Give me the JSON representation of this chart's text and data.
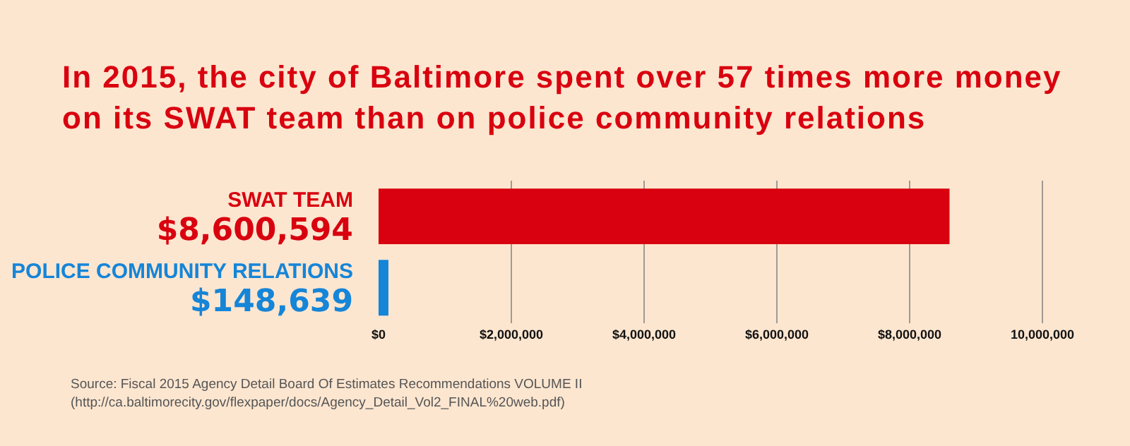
{
  "chart_data": {
    "type": "bar",
    "orientation": "horizontal",
    "title": "In 2015, the city of Baltimore spent over 57 times more money on its SWAT team than on police community relations",
    "categories": [
      "SWAT TEAM",
      "POLICE COMMUNITY RELATIONS"
    ],
    "values": [
      8600594,
      148639
    ],
    "colors": [
      "#d9000f",
      "#1585d8"
    ],
    "value_labels": [
      "$8,600,594",
      "$148,639"
    ],
    "xlim": [
      0,
      10000000
    ],
    "xticks": [
      {
        "value": 0,
        "label": "$0"
      },
      {
        "value": 2000000,
        "label": "$2,000,000"
      },
      {
        "value": 4000000,
        "label": "$4,000,000"
      },
      {
        "value": 6000000,
        "label": "$6,000,000"
      },
      {
        "value": 8000000,
        "label": "$8,000,000"
      },
      {
        "value": 10000000,
        "label": "10,000,000"
      }
    ],
    "grid": "x",
    "annotations": [
      "Source: Fiscal 2015 Agency Detail Board Of Estimates Recommendations VOLUME II (http://ca.baltimorecity.gov/flexpaper/docs/Agency_Detail_Vol2_FINAL%20web.pdf)"
    ]
  }
}
